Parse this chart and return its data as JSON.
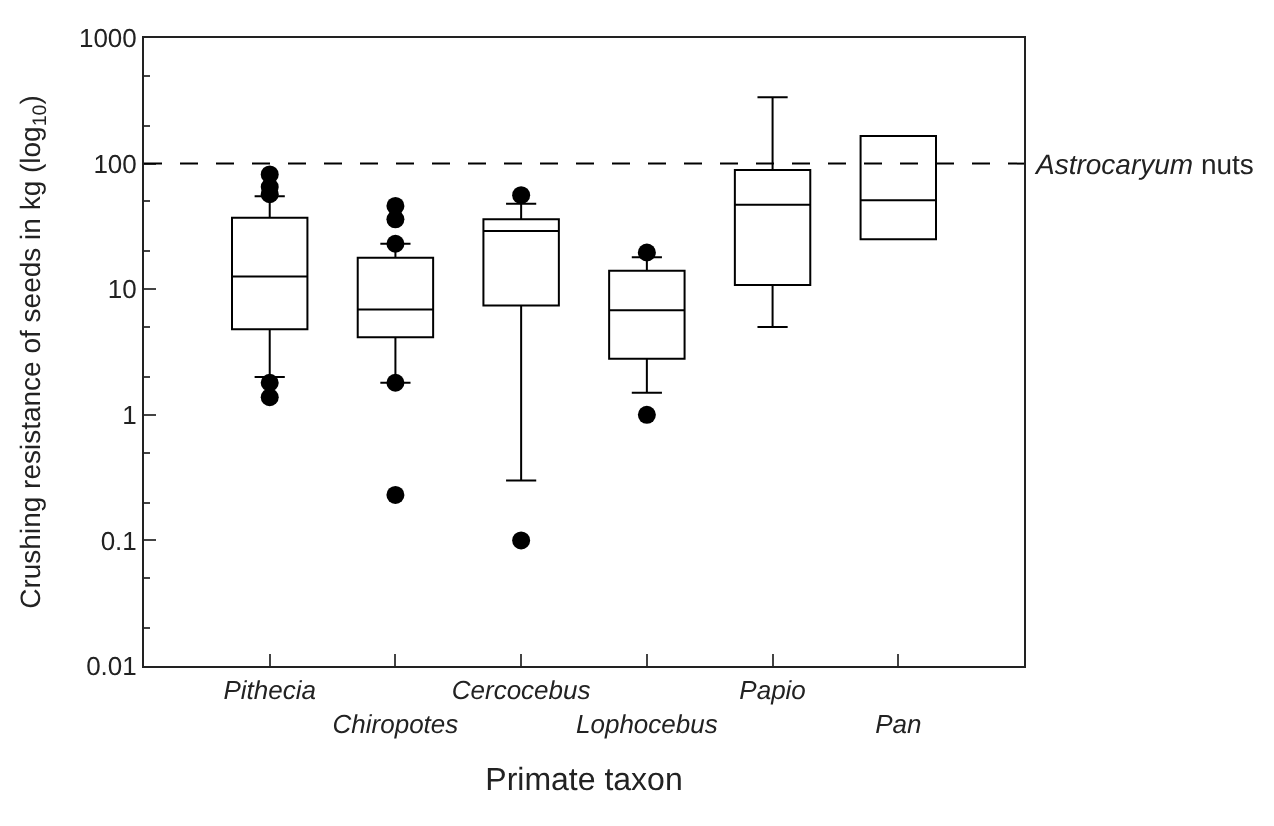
{
  "chart_data": {
    "type": "box",
    "xlabel": "Primate taxon",
    "ylabel": "Crushing resistance of seeds in kg (log$_{10}$)",
    "categories": [
      "Pithecia",
      "Chiropotes",
      "Cercocebus",
      "Lophocebus",
      "Papio",
      "Pan"
    ],
    "boxes": [
      {
        "low": 2.0,
        "q1": 4.8,
        "median": 12.6,
        "q3": 37,
        "high": 55,
        "outliers": [
          82,
          65,
          57,
          1.8,
          1.38
        ]
      },
      {
        "low": 1.8,
        "q1": 4.15,
        "median": 6.9,
        "q3": 17.8,
        "high": 23,
        "outliers": [
          46,
          36,
          23,
          1.8,
          0.23
        ]
      },
      {
        "low": 0.3,
        "q1": 7.4,
        "median": 29,
        "q3": 36,
        "high": 48,
        "outliers": [
          56,
          0.1
        ]
      },
      {
        "low": 1.5,
        "q1": 2.8,
        "median": 6.8,
        "q3": 14,
        "high": 18,
        "outliers": [
          19.6,
          1.0
        ]
      },
      {
        "low": 5.0,
        "q1": 10.8,
        "median": 47,
        "q3": 89,
        "high": 337
      },
      {
        "low": 25,
        "q1": 25,
        "median": 51,
        "q3": 166,
        "high": 166
      }
    ],
    "color": "#000000",
    "log": "y",
    "ylim": [
      0.01,
      1000
    ],
    "yticks": [
      0.01,
      0.1,
      1,
      10,
      100,
      1000
    ],
    "ref_lines": [
      {
        "axis": "y",
        "value": 100,
        "label": "Astrocaryum nuts",
        "line_style": "dashed",
        "color": "#000000"
      }
    ]
  }
}
